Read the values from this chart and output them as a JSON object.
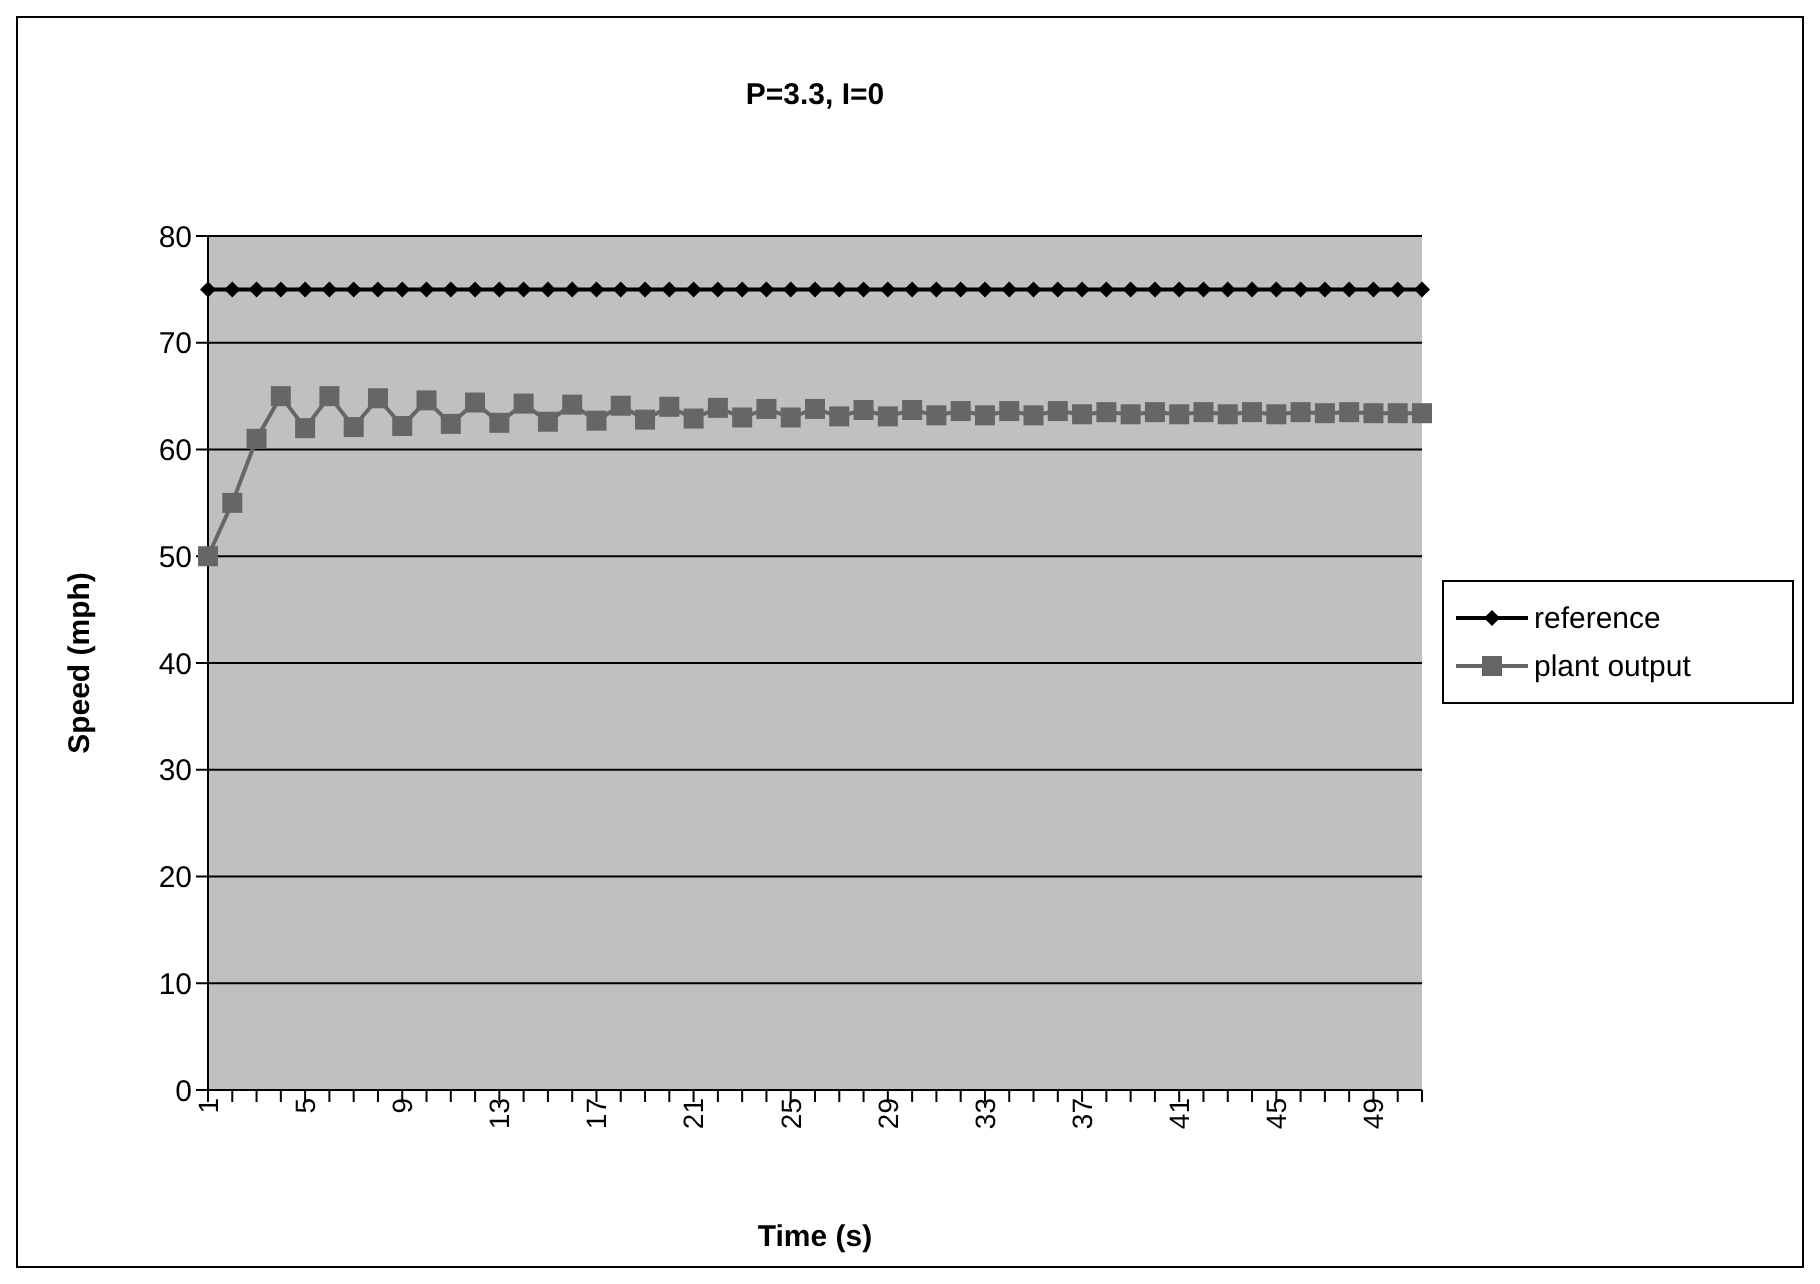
{
  "chart_data": {
    "type": "line",
    "title": "P=3.3, I=0",
    "xlabel": "Time (s)",
    "ylabel": "Speed (mph)",
    "categories": [
      "1",
      null,
      null,
      null,
      "5",
      null,
      null,
      null,
      "9",
      null,
      null,
      null,
      "13",
      null,
      null,
      null,
      "17",
      null,
      null,
      null,
      "21",
      null,
      null,
      null,
      "25",
      null,
      null,
      null,
      "29",
      null,
      null,
      null,
      "33",
      null,
      null,
      null,
      "37",
      null,
      null,
      null,
      "41",
      null,
      null,
      null,
      "45",
      null,
      null,
      null,
      "49",
      null,
      null
    ],
    "series": [
      {
        "name": "reference",
        "color": "#000000",
        "marker": "diamond",
        "values": [
          75,
          75,
          75,
          75,
          75,
          75,
          75,
          75,
          75,
          75,
          75,
          75,
          75,
          75,
          75,
          75,
          75,
          75,
          75,
          75,
          75,
          75,
          75,
          75,
          75,
          75,
          75,
          75,
          75,
          75,
          75,
          75,
          75,
          75,
          75,
          75,
          75,
          75,
          75,
          75,
          75,
          75,
          75,
          75,
          75,
          75,
          75,
          75,
          75,
          75,
          75
        ]
      },
      {
        "name": "plant output",
        "color": "#666666",
        "marker": "square",
        "values": [
          50,
          55,
          61,
          65,
          62,
          65,
          62.1,
          64.8,
          62.2,
          64.6,
          62.4,
          64.4,
          62.5,
          64.3,
          62.6,
          64.2,
          62.7,
          64.1,
          62.8,
          64,
          62.9,
          63.9,
          63,
          63.8,
          63,
          63.8,
          63.1,
          63.7,
          63.1,
          63.7,
          63.2,
          63.6,
          63.2,
          63.6,
          63.2,
          63.6,
          63.3,
          63.5,
          63.3,
          63.5,
          63.3,
          63.5,
          63.3,
          63.5,
          63.3,
          63.5,
          63.4,
          63.5,
          63.4,
          63.4,
          63.4
        ]
      }
    ],
    "ylim": [
      0,
      80
    ],
    "yticks": [
      0,
      10,
      20,
      30,
      40,
      50,
      60,
      70,
      80
    ],
    "grid": "y",
    "legend": "right",
    "line_style": "solid"
  }
}
